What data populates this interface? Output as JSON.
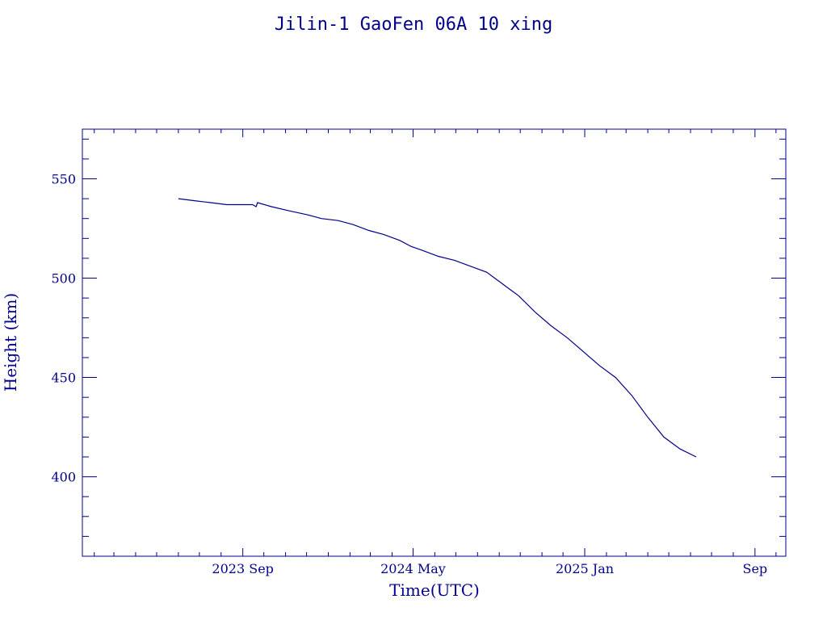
{
  "chart_data": {
    "type": "line",
    "title": "Jilin-1 GaoFen 06A 10 xing",
    "xlabel": "Time(UTC)",
    "ylabel": "Height (km)",
    "x_start": "2023-01-15",
    "x_end": "2025-10-15",
    "ylim": [
      360,
      575
    ],
    "y_ticks": [
      400,
      450,
      500,
      550
    ],
    "x_ticks": [
      {
        "date": "2023-09-01",
        "label": "2023 Sep"
      },
      {
        "date": "2024-05-01",
        "label": "2024 May"
      },
      {
        "date": "2025-01-01",
        "label": "2025 Jan"
      },
      {
        "date": "2025-09-01",
        "label": "Sep"
      }
    ],
    "grid": false,
    "color": "#00008b",
    "series": [
      {
        "x": [
          "2023-06-01",
          "2023-06-24",
          "2023-07-17",
          "2023-08-09",
          "2023-08-20",
          "2023-09-01",
          "2023-09-15",
          "2023-09-20",
          "2023-09-22",
          "2023-10-12",
          "2023-11-05",
          "2023-12-01",
          "2023-12-22",
          "2024-01-15",
          "2024-02-05",
          "2024-02-28",
          "2024-03-20",
          "2024-04-12",
          "2024-04-28",
          "2024-05-14",
          "2024-06-06",
          "2024-06-29",
          "2024-07-22",
          "2024-08-14",
          "2024-09-06",
          "2024-09-29",
          "2024-10-22",
          "2024-11-14",
          "2024-12-07",
          "2024-12-30",
          "2025-01-22",
          "2025-02-14",
          "2025-03-09",
          "2025-04-01",
          "2025-04-24",
          "2025-05-17",
          "2025-06-09"
        ],
        "y": [
          540,
          539,
          538,
          537,
          537,
          537,
          537,
          536,
          538,
          536,
          534,
          532,
          530,
          529,
          527,
          524,
          522,
          519,
          516,
          514,
          511,
          509,
          506,
          503,
          497,
          491,
          483,
          476,
          470,
          463,
          456,
          450,
          441,
          430,
          420,
          414,
          410
        ]
      }
    ]
  }
}
